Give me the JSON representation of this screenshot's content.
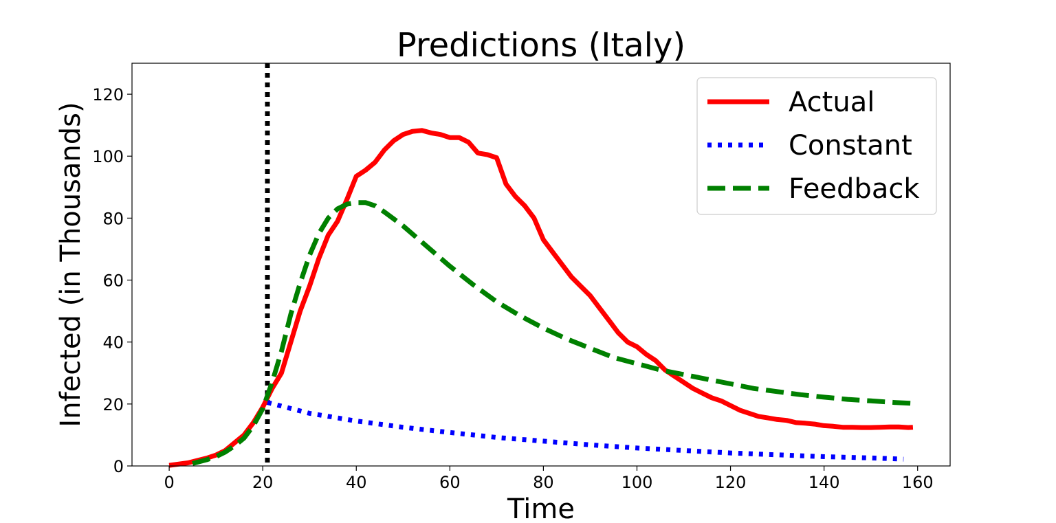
{
  "chart_data": {
    "type": "line",
    "title": "Predictions (Italy)",
    "xlabel": "Time",
    "ylabel": "Infected (in Thousands)",
    "xlim": [
      -7.95,
      166.95
    ],
    "ylim": [
      0,
      130
    ],
    "xticks": [
      0,
      20,
      40,
      60,
      80,
      100,
      120,
      140,
      160
    ],
    "yticks": [
      0,
      20,
      40,
      60,
      80,
      100,
      120
    ],
    "xtick_labels": [
      "0",
      "20",
      "40",
      "60",
      "80",
      "100",
      "120",
      "140",
      "160"
    ],
    "ytick_labels": [
      "0",
      "20",
      "40",
      "60",
      "80",
      "100",
      "120"
    ],
    "grid": false,
    "legend": {
      "position": "top-right"
    },
    "vertical_marker": {
      "x": 21,
      "style": "dotted",
      "color": "#000000"
    },
    "series": [
      {
        "name": "Actual",
        "color": "#ff0000",
        "style": "solid",
        "x": [
          0,
          4,
          8,
          10,
          12,
          14,
          16,
          18,
          20,
          22,
          24,
          26,
          28,
          30,
          32,
          34,
          36,
          38,
          40,
          42,
          44,
          46,
          48,
          50,
          52,
          54,
          56,
          58,
          60,
          62,
          64,
          66,
          68,
          70,
          72,
          74,
          76,
          78,
          80,
          82,
          84,
          86,
          88,
          90,
          92,
          94,
          96,
          98,
          100,
          102,
          104,
          106,
          108,
          110,
          112,
          114,
          116,
          118,
          120,
          122,
          124,
          126,
          128,
          130,
          132,
          134,
          136,
          138,
          140,
          142,
          144,
          146,
          148,
          150,
          152,
          154,
          156,
          158,
          159
        ],
        "y": [
          0.2,
          1.0,
          2.5,
          3.5,
          5.0,
          7.5,
          10.0,
          14.0,
          19.0,
          25.0,
          30.0,
          40.0,
          50.0,
          58.0,
          67.0,
          74.5,
          79.0,
          86.0,
          93.5,
          95.5,
          98.0,
          102.0,
          105.0,
          107.0,
          108.0,
          108.3,
          107.5,
          107.0,
          106.0,
          106.0,
          104.5,
          101.0,
          100.5,
          99.5,
          91.0,
          87.0,
          84.0,
          80.0,
          73.0,
          69.0,
          65.0,
          61.0,
          58.0,
          55.0,
          51.0,
          47.0,
          43.0,
          40.0,
          38.5,
          36.0,
          34.0,
          31.0,
          29.0,
          27.0,
          25.0,
          23.5,
          22.0,
          21.0,
          19.5,
          18.0,
          17.0,
          16.0,
          15.5,
          15.0,
          14.7,
          14.0,
          13.8,
          13.5,
          13.0,
          12.8,
          12.5,
          12.5,
          12.4,
          12.4,
          12.5,
          12.6,
          12.6,
          12.4,
          12.5
        ]
      },
      {
        "name": "Constant",
        "color": "#0000ff",
        "style": "dotted",
        "x": [
          21,
          30,
          40,
          50,
          60,
          70,
          80,
          90,
          100,
          110,
          120,
          130,
          140,
          150,
          157
        ],
        "y": [
          20.5,
          17.0,
          14.5,
          12.5,
          10.8,
          9.2,
          8.0,
          6.8,
          5.8,
          5.0,
          4.2,
          3.6,
          3.0,
          2.6,
          2.2
        ]
      },
      {
        "name": "Feedback",
        "color": "#008000",
        "style": "dashed",
        "x": [
          5,
          8,
          10,
          12,
          14,
          16,
          18,
          20,
          22,
          24,
          26,
          28,
          30,
          32,
          34,
          36,
          38,
          40,
          42,
          44,
          46,
          50,
          55,
          60,
          65,
          70,
          75,
          80,
          85,
          90,
          95,
          100,
          105,
          110,
          115,
          120,
          125,
          130,
          135,
          140,
          145,
          150,
          155,
          159
        ],
        "y": [
          0.8,
          2.0,
          3.0,
          4.5,
          6.5,
          9.0,
          13.0,
          18.5,
          27.0,
          37.0,
          49.0,
          59.0,
          68.0,
          75.0,
          80.0,
          83.0,
          84.5,
          85.0,
          85.0,
          84.0,
          82.0,
          77.5,
          71.0,
          64.5,
          58.5,
          53.0,
          48.5,
          44.5,
          41.0,
          38.0,
          35.0,
          33.0,
          31.0,
          29.5,
          28.0,
          26.5,
          25.0,
          24.0,
          23.0,
          22.2,
          21.5,
          21.0,
          20.5,
          20.2
        ]
      }
    ]
  }
}
